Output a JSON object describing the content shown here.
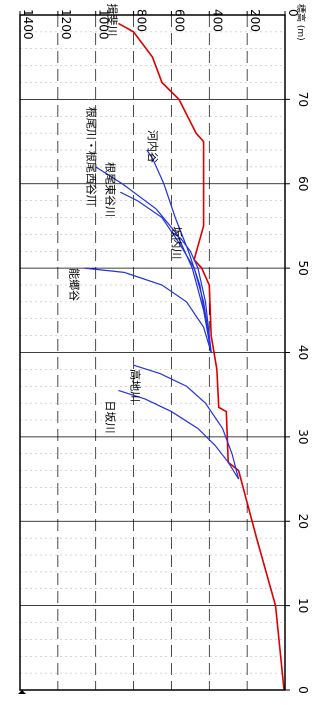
{
  "chart_data": {
    "type": "line",
    "orientation": "rotated-90-clockwise",
    "xlabel": "",
    "ylabel": "標高 (m)",
    "xlim": [
      0,
      80
    ],
    "ylim": [
      0,
      1400
    ],
    "x_ticks": [
      "0",
      "10",
      "20",
      "30",
      "40",
      "50",
      "60",
      "70"
    ],
    "y_ticks": [
      "0",
      "200",
      "400",
      "600",
      "800",
      "1000",
      "1200",
      "1400"
    ],
    "grid": true,
    "series": [
      {
        "name": "揖斐川",
        "color": "#dd0000",
        "x": [
          0,
          10,
          18,
          26,
          27,
          33,
          33.5,
          38,
          42,
          48,
          50,
          51,
          55,
          65,
          66,
          70,
          72,
          75,
          78,
          79
        ],
        "y": [
          5,
          50,
          150,
          245,
          300,
          310,
          350,
          360,
          390,
          400,
          440,
          480,
          430,
          430,
          470,
          560,
          650,
          700,
          800,
          880
        ]
      },
      {
        "name": "日坂川",
        "color": "#2233dd",
        "x": [
          25,
          27,
          29,
          31,
          33,
          34.5,
          35.5
        ],
        "y": [
          245,
          300,
          370,
          460,
          600,
          740,
          880
        ]
      },
      {
        "name": "高地川",
        "color": "#2233dd",
        "x": [
          25,
          28,
          31,
          34,
          36,
          37.5,
          38.5
        ],
        "y": [
          245,
          280,
          330,
          420,
          520,
          660,
          800
        ]
      },
      {
        "name": "能郷谷",
        "color": "#2233dd",
        "x": [
          40,
          43,
          46,
          48,
          49.5,
          50
        ],
        "y": [
          390,
          430,
          520,
          650,
          850,
          1060
        ]
      },
      {
        "name": "坂内川",
        "color": "#2233dd",
        "x": [
          40,
          46,
          50,
          52,
          53.5,
          54
        ],
        "y": [
          390,
          420,
          460,
          500,
          550,
          580
        ]
      },
      {
        "name": "根尾東谷川",
        "color": "#2233dd",
        "x": [
          40,
          46,
          50,
          53,
          56,
          58,
          59
        ],
        "y": [
          390,
          430,
          480,
          560,
          650,
          780,
          870
        ]
      },
      {
        "name": "根尾川・根尾西谷川",
        "color": "#2233dd",
        "x": [
          40,
          45,
          50,
          54,
          57,
          60,
          62
        ],
        "y": [
          390,
          430,
          490,
          570,
          680,
          860,
          1000
        ]
      },
      {
        "name": "河内谷",
        "color": "#2233dd",
        "x": [
          40,
          48,
          52,
          56,
          60,
          63,
          64
        ],
        "y": [
          390,
          450,
          510,
          580,
          640,
          700,
          730
        ]
      }
    ]
  }
}
